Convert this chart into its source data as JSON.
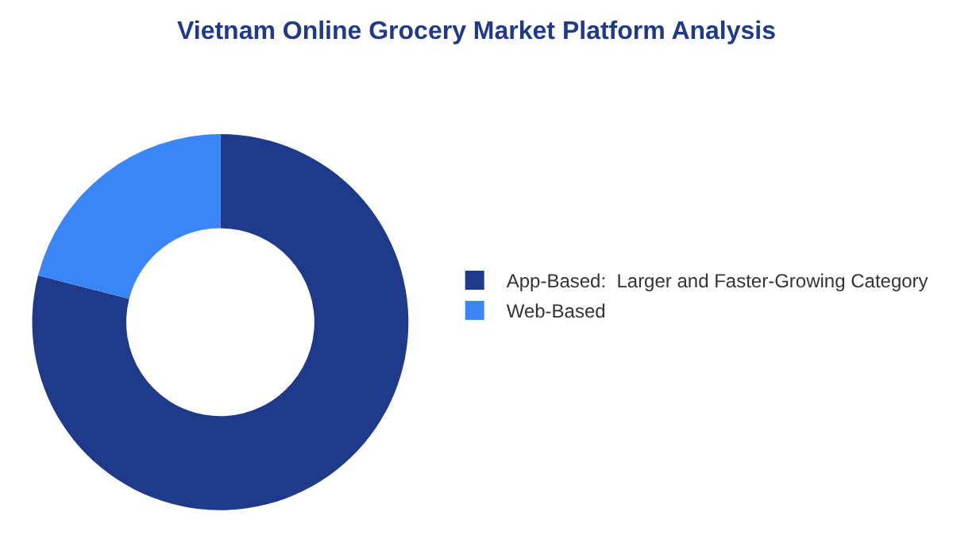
{
  "chart_data": {
    "type": "donut",
    "title": "Vietnam Online Grocery Market Platform Analysis",
    "categories": [
      "App-Based:  Larger and Faster-Growing Category",
      "Web-Based"
    ],
    "values": [
      79,
      21
    ],
    "colors": [
      "#1f3a8a",
      "#3b86f7"
    ],
    "legend": "right"
  }
}
